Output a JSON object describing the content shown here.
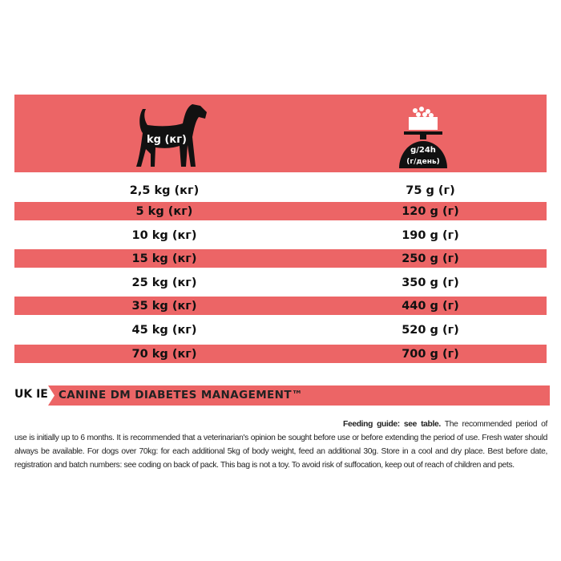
{
  "header": {
    "weight_label": "kg (кг)",
    "ration_label_top": "g/24h",
    "ration_label_bottom": "(г/день)",
    "icons": [
      "dog-icon",
      "food-bowl-scale-icon"
    ]
  },
  "rows": [
    {
      "weight": "2,5 kg  (кг)",
      "ration": "75 g  (г)"
    },
    {
      "weight": "5 kg  (кг)",
      "ration": "120 g  (г)"
    },
    {
      "weight": "10 kg  (кг)",
      "ration": "190 g  (г)"
    },
    {
      "weight": "15 kg  (кг)",
      "ration": "250 g  (г)"
    },
    {
      "weight": "25 kg  (кг)",
      "ration": "350 g  (г)"
    },
    {
      "weight": "35 kg  (кг)",
      "ration": "440 g  (г)"
    },
    {
      "weight": "45 kg  (кг)",
      "ration": "520 g  (г)"
    },
    {
      "weight": "70 kg  (кг)",
      "ration": "700 g  (г)"
    }
  ],
  "region_code": "UK IE",
  "product_name": "CANINE DM DIABETES MANAGEMENT™",
  "feeding_lead": "Feeding guide: see table.",
  "feeding_text": " The recommended period of use is initially up to 6 months. It is recommended that a veterinarian's opinion be sought before use or before extending the period of use. Fresh water should always be available. For dogs over 70kg: for each additional 5kg of body weight, feed an additional 30g. Store in a cool and dry place. Best before date, registration and batch numbers: see coding on back of pack. This bag is not a toy. To avoid risk of suffocation, keep out of reach of children and pets.",
  "colors": {
    "accent": "#ec6566",
    "text": "#111111"
  }
}
